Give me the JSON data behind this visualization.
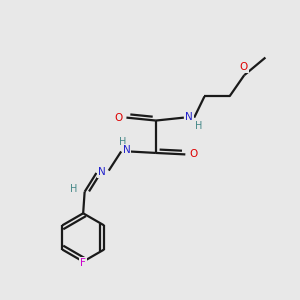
{
  "bg_color": "#e8e8e8",
  "bond_color": "#1a1a1a",
  "atom_colors": {
    "O": "#dd0000",
    "N": "#2222cc",
    "F": "#cc00cc",
    "H": "#448888",
    "C": "#1a1a1a"
  },
  "figsize": [
    3.0,
    3.0
  ],
  "dpi": 100,
  "lw": 1.6,
  "fontsize": 7.5
}
